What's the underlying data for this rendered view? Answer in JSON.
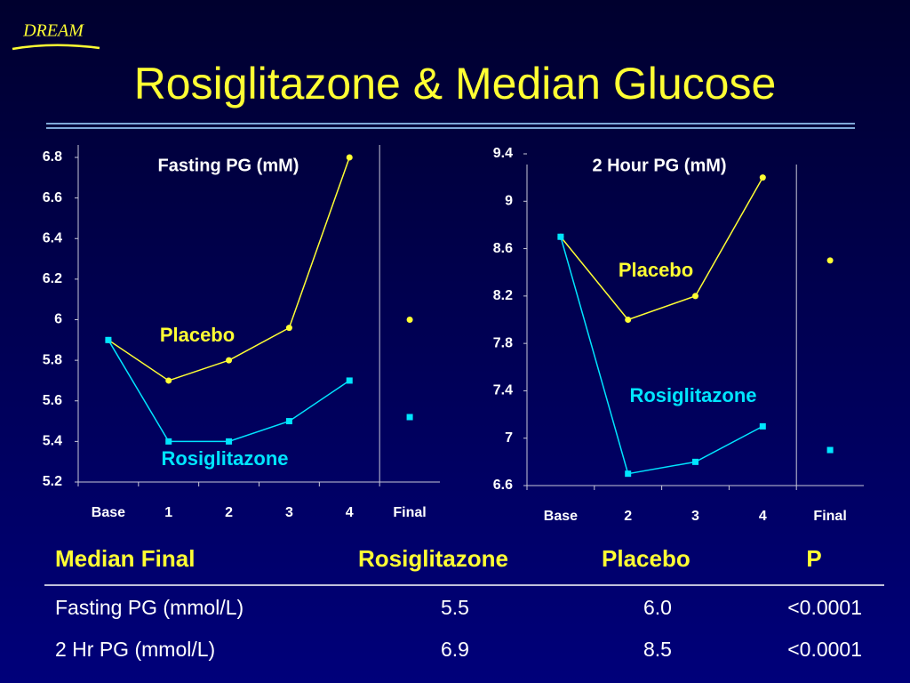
{
  "logo": "DREAM",
  "title": "Rosiglitazone & Median Glucose",
  "chart_data": [
    {
      "type": "line",
      "title": "Fasting PG (mM)",
      "categories": [
        "Base",
        "1",
        "2",
        "3",
        "4",
        "Final"
      ],
      "divider_before": "Final",
      "series": [
        {
          "name": "Placebo",
          "color": "#ffff33",
          "marker": "circle",
          "values": [
            5.9,
            5.7,
            5.8,
            5.96,
            6.8,
            6.0
          ]
        },
        {
          "name": "Rosiglitazone",
          "color": "#00e5ff",
          "marker": "square",
          "values": [
            5.9,
            5.4,
            5.4,
            5.5,
            5.7,
            5.52
          ]
        }
      ],
      "ylim": [
        5.2,
        6.8
      ],
      "yticks": [
        5.2,
        5.4,
        5.6,
        5.8,
        6,
        6.2,
        6.4,
        6.6,
        6.8
      ]
    },
    {
      "type": "line",
      "title": "2 Hour PG (mM)",
      "categories": [
        "Base",
        "2",
        "3",
        "4",
        "Final"
      ],
      "divider_before": "Final",
      "series": [
        {
          "name": "Placebo",
          "color": "#ffff33",
          "marker": "circle",
          "values": [
            8.7,
            8.0,
            8.2,
            9.2,
            8.5
          ]
        },
        {
          "name": "Rosiglitazone",
          "color": "#00e5ff",
          "marker": "square",
          "values": [
            8.7,
            6.7,
            6.8,
            7.1,
            6.9
          ]
        }
      ],
      "ylim": [
        6.6,
        9.4
      ],
      "yticks": [
        6.6,
        7,
        7.4,
        7.8,
        8.2,
        8.6,
        9,
        9.4
      ]
    }
  ],
  "table": {
    "header": [
      "Median Final",
      "Rosiglitazone",
      "Placebo",
      "P"
    ],
    "rows": [
      [
        "Fasting PG (mmol/L)",
        "5.5",
        "6.0",
        "<0.0001"
      ],
      [
        "2 Hr PG (mmol/L)",
        "6.9",
        "8.5",
        "<0.0001"
      ]
    ]
  }
}
